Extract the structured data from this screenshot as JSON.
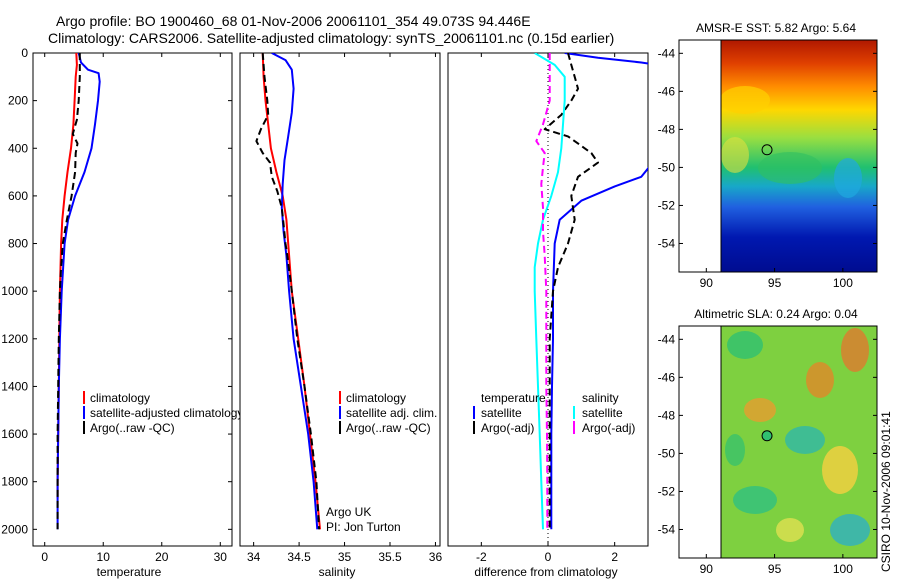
{
  "header": {
    "line1": "Argo profile: BO 1900460_68 01-Nov-2006 20061101_354 49.073S 94.446E",
    "line2": "Climatology: CARS2006. Satellite-adjusted climatology: synTS_20061101.nc (0.15d earlier)"
  },
  "side_label": "CSIRO 10-Nov-2006 09:01:41",
  "colors": {
    "red": "#ff0000",
    "blue": "#0000ff",
    "black": "#000000",
    "cyan": "#00ffff",
    "magenta": "#ff00ff"
  },
  "chart_data": [
    {
      "type": "line",
      "name": "temperature-panel",
      "xlabel": "temperature",
      "ylabel": "",
      "xlim": [
        -2,
        32
      ],
      "ylim": [
        0,
        2070
      ],
      "x_ticks": [
        0,
        10,
        20,
        30
      ],
      "y_ticks": [
        0,
        200,
        400,
        600,
        800,
        1000,
        1200,
        1400,
        1600,
        1800,
        2000
      ],
      "series": [
        {
          "name": "climatology",
          "color": "#ff0000",
          "style": "solid",
          "points": [
            [
              5.4,
              0
            ],
            [
              5.5,
              50
            ],
            [
              5.3,
              100
            ],
            [
              5.1,
              200
            ],
            [
              4.9,
              300
            ],
            [
              4.5,
              400
            ],
            [
              3.9,
              500
            ],
            [
              3.4,
              600
            ],
            [
              3.0,
              700
            ],
            [
              2.8,
              800
            ],
            [
              2.6,
              1000
            ],
            [
              2.5,
              1200
            ],
            [
              2.4,
              1400
            ],
            [
              2.3,
              1600
            ],
            [
              2.2,
              1800
            ],
            [
              2.2,
              1870
            ]
          ]
        },
        {
          "name": "satellite-adjusted climatology",
          "color": "#0000ff",
          "style": "solid",
          "points": [
            [
              5.8,
              0
            ],
            [
              6.2,
              40
            ],
            [
              7.4,
              70
            ],
            [
              9.2,
              85
            ],
            [
              9.4,
              120
            ],
            [
              9.1,
              200
            ],
            [
              8.6,
              300
            ],
            [
              8.0,
              400
            ],
            [
              6.8,
              500
            ],
            [
              5.2,
              600
            ],
            [
              4.0,
              700
            ],
            [
              3.4,
              800
            ],
            [
              2.9,
              1000
            ],
            [
              2.6,
              1200
            ],
            [
              2.4,
              1400
            ],
            [
              2.3,
              1600
            ],
            [
              2.2,
              1800
            ],
            [
              2.2,
              2000
            ]
          ]
        },
        {
          "name": "Argo(..raw -QC)",
          "color": "#000000",
          "style": "dashed",
          "points": [
            [
              6.0,
              0
            ],
            [
              6.0,
              100
            ],
            [
              5.8,
              200
            ],
            [
              5.5,
              280
            ],
            [
              4.8,
              340
            ],
            [
              5.6,
              380
            ],
            [
              5.3,
              420
            ],
            [
              5.2,
              500
            ],
            [
              4.6,
              600
            ],
            [
              3.8,
              700
            ],
            [
              3.1,
              800
            ],
            [
              2.8,
              900
            ],
            [
              2.6,
              1000
            ],
            [
              2.4,
              1200
            ],
            [
              2.3,
              1400
            ],
            [
              2.2,
              1600
            ],
            [
              2.2,
              1800
            ],
            [
              2.2,
              2000
            ]
          ]
        }
      ],
      "legend": {
        "position": "bottom-right",
        "entries": [
          "climatology",
          "satellite-adjusted climatology",
          "Argo(..raw -QC)"
        ]
      }
    },
    {
      "type": "line",
      "name": "salinity-panel",
      "xlabel": "salinity",
      "xlim": [
        33.85,
        36.05
      ],
      "ylim": [
        0,
        2070
      ],
      "x_ticks": [
        34,
        34.5,
        35,
        35.5,
        36
      ],
      "series": [
        {
          "name": "climatology",
          "color": "#ff0000",
          "style": "solid",
          "points": [
            [
              34.1,
              0
            ],
            [
              34.11,
              100
            ],
            [
              34.13,
              200
            ],
            [
              34.16,
              300
            ],
            [
              34.19,
              400
            ],
            [
              34.25,
              500
            ],
            [
              34.32,
              600
            ],
            [
              34.36,
              700
            ],
            [
              34.38,
              800
            ],
            [
              34.42,
              1000
            ],
            [
              34.49,
              1200
            ],
            [
              34.56,
              1400
            ],
            [
              34.62,
              1600
            ],
            [
              34.68,
              1800
            ],
            [
              34.73,
              2000
            ]
          ]
        },
        {
          "name": "satellite adj. clim.",
          "color": "#0000ff",
          "style": "solid",
          "points": [
            [
              34.2,
              0
            ],
            [
              34.35,
              30
            ],
            [
              34.42,
              70
            ],
            [
              34.44,
              150
            ],
            [
              34.42,
              250
            ],
            [
              34.38,
              350
            ],
            [
              34.34,
              450
            ],
            [
              34.32,
              550
            ],
            [
              34.31,
              650
            ],
            [
              34.33,
              750
            ],
            [
              34.36,
              850
            ],
            [
              34.39,
              1000
            ],
            [
              34.44,
              1200
            ],
            [
              34.52,
              1400
            ],
            [
              34.6,
              1600
            ],
            [
              34.66,
              1800
            ],
            [
              34.7,
              2000
            ]
          ]
        },
        {
          "name": "Argo(..raw -QC)",
          "color": "#000000",
          "style": "dashed",
          "points": [
            [
              34.1,
              0
            ],
            [
              34.12,
              100
            ],
            [
              34.15,
              200
            ],
            [
              34.16,
              260
            ],
            [
              34.08,
              320
            ],
            [
              34.03,
              370
            ],
            [
              34.1,
              420
            ],
            [
              34.18,
              460
            ],
            [
              34.2,
              520
            ],
            [
              34.26,
              580
            ],
            [
              34.31,
              650
            ],
            [
              34.33,
              720
            ],
            [
              34.35,
              800
            ],
            [
              34.37,
              850
            ],
            [
              34.42,
              1000
            ],
            [
              34.48,
              1200
            ],
            [
              34.56,
              1400
            ],
            [
              34.63,
              1600
            ],
            [
              34.69,
              1800
            ],
            [
              34.72,
              2000
            ]
          ]
        }
      ],
      "legend": {
        "position": "bottom-right",
        "entries": [
          "climatology",
          "satellite adj. clim.",
          "Argo(..raw -QC)"
        ]
      },
      "annotations": [
        "Argo UK",
        "PI: Jon Turton"
      ]
    },
    {
      "type": "line",
      "name": "difference-panel",
      "xlabel": "difference from climatology",
      "xlim": [
        -3,
        3
      ],
      "ylim": [
        0,
        2070
      ],
      "x_ticks": [
        -2,
        0,
        2
      ],
      "zero_line": "dotted",
      "series": [
        {
          "name": "temperature satellite",
          "color": "#0000ff",
          "style": "solid",
          "points": [
            [
              0.5,
              0
            ],
            [
              1.5,
              20
            ],
            [
              2.8,
              40
            ],
            [
              3.3,
              50
            ],
            [
              3.5,
              120
            ],
            [
              3.4,
              300
            ],
            [
              3.2,
              450
            ],
            [
              2.8,
              520
            ],
            [
              2.0,
              560
            ],
            [
              1.0,
              620
            ],
            [
              0.35,
              700
            ],
            [
              0.2,
              800
            ],
            [
              0.15,
              1000
            ],
            [
              0.15,
              1200
            ],
            [
              0.12,
              1400
            ],
            [
              0.1,
              1600
            ],
            [
              0.1,
              1800
            ],
            [
              0.1,
              2000
            ]
          ]
        },
        {
          "name": "temperature Argo(-adj)",
          "color": "#000000",
          "style": "dashed",
          "points": [
            [
              0.6,
              0
            ],
            [
              0.7,
              50
            ],
            [
              0.8,
              100
            ],
            [
              0.9,
              150
            ],
            [
              0.7,
              200
            ],
            [
              0.4,
              260
            ],
            [
              -0.1,
              320
            ],
            [
              0.6,
              350
            ],
            [
              1.3,
              420
            ],
            [
              1.5,
              460
            ],
            [
              0.9,
              520
            ],
            [
              0.7,
              600
            ],
            [
              0.8,
              700
            ],
            [
              0.6,
              800
            ],
            [
              0.3,
              900
            ],
            [
              0.15,
              1000
            ],
            [
              0.05,
              1200
            ],
            [
              0.05,
              1400
            ],
            [
              0.05,
              1600
            ],
            [
              0.05,
              1800
            ],
            [
              0.05,
              2000
            ]
          ]
        },
        {
          "name": "salinity satellite",
          "color": "#00ffff",
          "style": "solid",
          "points": [
            [
              -0.4,
              0
            ],
            [
              0.2,
              50
            ],
            [
              0.5,
              100
            ],
            [
              0.5,
              200
            ],
            [
              0.45,
              300
            ],
            [
              0.4,
              400
            ],
            [
              0.3,
              500
            ],
            [
              0.1,
              600
            ],
            [
              -0.15,
              700
            ],
            [
              -0.3,
              800
            ],
            [
              -0.4,
              900
            ],
            [
              -0.4,
              1000
            ],
            [
              -0.35,
              1200
            ],
            [
              -0.3,
              1400
            ],
            [
              -0.25,
              1600
            ],
            [
              -0.2,
              1800
            ],
            [
              -0.15,
              2000
            ]
          ]
        },
        {
          "name": "salinity Argo(-adj)",
          "color": "#ff00ff",
          "style": "dashed",
          "points": [
            [
              0.05,
              0
            ],
            [
              0.05,
              100
            ],
            [
              0.05,
              200
            ],
            [
              -0.15,
              300
            ],
            [
              -0.35,
              370
            ],
            [
              -0.1,
              420
            ],
            [
              -0.15,
              480
            ],
            [
              -0.2,
              550
            ],
            [
              -0.15,
              650
            ],
            [
              -0.15,
              750
            ],
            [
              -0.1,
              850
            ],
            [
              -0.05,
              1000
            ],
            [
              -0.05,
              1200
            ],
            [
              -0.05,
              1400
            ],
            [
              -0.03,
              1600
            ],
            [
              -0.02,
              1800
            ],
            [
              -0.02,
              2000
            ]
          ]
        }
      ],
      "legend": {
        "position": "bottom-right",
        "temperature_header": "temperature",
        "salinity_header": "salinity",
        "entries": [
          "satellite",
          "Argo(-adj)",
          "satellite",
          "Argo(-adj)"
        ]
      }
    },
    {
      "type": "heatmap",
      "name": "sst-map",
      "title": "AMSR-E SST: 5.82  Argo: 5.64",
      "xlim": [
        88,
        102.5
      ],
      "ylim": [
        -55.5,
        -43.3
      ],
      "x_ticks": [
        90,
        95,
        100
      ],
      "y_ticks": [
        -44,
        -46,
        -48,
        -50,
        -52,
        -54
      ],
      "marker": {
        "lon": 94.446,
        "lat": -49.073
      }
    },
    {
      "type": "heatmap",
      "name": "sla-map",
      "title": "Altimetric SLA: 0.24  Argo: 0.04",
      "xlim": [
        88,
        102.5
      ],
      "ylim": [
        -55.5,
        -43.3
      ],
      "x_ticks": [
        90,
        95,
        100
      ],
      "y_ticks": [
        -44,
        -46,
        -48,
        -50,
        -52,
        -54
      ],
      "marker": {
        "lon": 94.446,
        "lat": -49.073
      }
    }
  ]
}
